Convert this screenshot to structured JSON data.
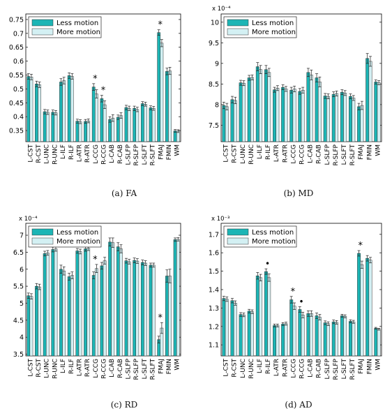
{
  "colors": {
    "less": "#1cb5b5",
    "more": "#d3f0f3",
    "edge": "#333333"
  },
  "chart_data": [
    {
      "type": "bar",
      "caption": "(a) FA",
      "exponent_label": "",
      "categories": [
        "L-CST",
        "R-CST",
        "L-UNC",
        "R-UNC",
        "L-ILF",
        "R-ILF",
        "L-ATR",
        "R-ATR",
        "L-CCG",
        "R-CCG",
        "L-CAB",
        "R-CAB",
        "L-SLFP",
        "R-SLFP",
        "L-SLFT",
        "R-SLFT",
        "FMAJ",
        "FMIN",
        "WM"
      ],
      "ylim": [
        0.31,
        0.77
      ],
      "yticks": [
        0.35,
        0.4,
        0.45,
        0.5,
        0.55,
        0.6,
        0.65,
        0.7,
        0.75
      ],
      "ytick_labels": [
        "0.35",
        "0.4",
        "0.45",
        "0.5",
        "0.55",
        "0.6",
        "0.65",
        "0.7",
        "0.75"
      ],
      "legend": [
        "Less motion",
        "More motion"
      ],
      "legend_position": "top-left",
      "markers": [
        "",
        "",
        "",
        "",
        "",
        "",
        "",
        "",
        "*",
        "*",
        "",
        "",
        "",
        "",
        "",
        "",
        "*",
        "",
        ""
      ],
      "series": [
        {
          "name": "Less motion",
          "values": [
            0.545,
            0.518,
            0.418,
            0.416,
            0.525,
            0.548,
            0.384,
            0.383,
            0.507,
            0.465,
            0.39,
            0.398,
            0.433,
            0.43,
            0.447,
            0.432,
            0.703,
            0.563,
            0.349
          ],
          "errors": [
            0.01,
            0.01,
            0.008,
            0.008,
            0.012,
            0.01,
            0.007,
            0.007,
            0.012,
            0.012,
            0.01,
            0.008,
            0.008,
            0.008,
            0.007,
            0.007,
            0.01,
            0.012,
            0.005
          ]
        },
        {
          "name": "More motion",
          "values": [
            0.543,
            0.515,
            0.416,
            0.414,
            0.53,
            0.545,
            0.382,
            0.385,
            0.482,
            0.443,
            0.395,
            0.404,
            0.43,
            0.426,
            0.445,
            0.43,
            0.665,
            0.565,
            0.348
          ],
          "errors": [
            0.01,
            0.01,
            0.008,
            0.008,
            0.012,
            0.01,
            0.007,
            0.007,
            0.015,
            0.014,
            0.012,
            0.01,
            0.008,
            0.008,
            0.007,
            0.007,
            0.013,
            0.013,
            0.005
          ]
        }
      ]
    },
    {
      "type": "bar",
      "caption": "(b) MD",
      "exponent_label": "x 10⁻⁴",
      "categories": [
        "L-CST",
        "R-CST",
        "L-UNC",
        "R-UNC",
        "L-ILF",
        "R-ILF",
        "L-ATR",
        "R-ATR",
        "L-CCG",
        "R-CCG",
        "L-CAB",
        "R-CAB",
        "L-SLFP",
        "R-SLFP",
        "L-SLFT",
        "R-SLFT",
        "FMAJ",
        "FMIN",
        "WM"
      ],
      "ylim": [
        7.1,
        10.2
      ],
      "yticks": [
        7.5,
        8,
        8.5,
        9,
        9.5,
        10
      ],
      "ytick_labels": [
        "7.5",
        "8",
        "8.5",
        "9",
        "9.5",
        "10"
      ],
      "legend": [
        "Less motion",
        "More motion"
      ],
      "legend_position": "top-left",
      "markers": [
        "",
        "",
        "",
        "",
        "",
        "",
        "",
        "",
        "",
        "",
        "",
        "",
        "",
        "",
        "",
        "",
        "",
        "",
        ""
      ],
      "series": [
        {
          "name": "Less motion",
          "values": [
            7.98,
            8.12,
            8.53,
            8.65,
            8.92,
            8.85,
            8.36,
            8.42,
            8.35,
            8.32,
            8.78,
            8.65,
            8.21,
            8.25,
            8.3,
            8.2,
            7.95,
            9.12,
            8.55
          ],
          "errors": [
            0.08,
            0.08,
            0.06,
            0.06,
            0.1,
            0.1,
            0.06,
            0.06,
            0.07,
            0.07,
            0.1,
            0.1,
            0.06,
            0.06,
            0.06,
            0.06,
            0.08,
            0.12,
            0.05
          ]
        },
        {
          "name": "More motion",
          "values": [
            7.95,
            8.1,
            8.52,
            8.66,
            8.85,
            8.78,
            8.4,
            8.38,
            8.38,
            8.35,
            8.72,
            8.55,
            8.2,
            8.27,
            8.28,
            8.16,
            7.98,
            9.05,
            8.53
          ],
          "errors": [
            0.08,
            0.08,
            0.06,
            0.06,
            0.1,
            0.1,
            0.06,
            0.06,
            0.07,
            0.07,
            0.12,
            0.12,
            0.06,
            0.06,
            0.06,
            0.06,
            0.1,
            0.12,
            0.05
          ]
        }
      ]
    },
    {
      "type": "bar",
      "caption": "(c) RD",
      "exponent_label": "x 10⁻⁴",
      "categories": [
        "L-CST",
        "R-CST",
        "L-UNC",
        "R-UNC",
        "L-ILF",
        "R-ILF",
        "L-ATR",
        "R-ATR",
        "L-CCG",
        "R-CCG",
        "L-CAB",
        "R-CAB",
        "L-SLFP",
        "R-SLFP",
        "L-SLFT",
        "R-SLFT",
        "FMAJ",
        "FMIN",
        "WM"
      ],
      "ylim": [
        3.45,
        7.35
      ],
      "yticks": [
        3.5,
        4,
        4.5,
        5,
        5.5,
        6,
        6.5,
        7
      ],
      "ytick_labels": [
        "3.5",
        "4",
        "4.5",
        "5",
        "5.5",
        "6",
        "6.5",
        "7"
      ],
      "legend": [
        "Less motion",
        "More motion"
      ],
      "legend_position": "top-left",
      "markers": [
        "",
        "",
        "",
        "",
        "",
        "",
        "",
        "",
        "*",
        "",
        "",
        "",
        "",
        "",
        "",
        "",
        "*",
        "",
        ""
      ],
      "series": [
        {
          "name": "Less motion",
          "values": [
            5.22,
            5.5,
            6.46,
            6.58,
            6.0,
            5.78,
            6.54,
            6.6,
            5.82,
            6.1,
            6.8,
            6.66,
            6.25,
            6.26,
            6.2,
            6.12,
            3.93,
            5.8,
            6.87
          ],
          "errors": [
            0.08,
            0.08,
            0.07,
            0.07,
            0.12,
            0.1,
            0.07,
            0.07,
            0.1,
            0.1,
            0.12,
            0.12,
            0.07,
            0.07,
            0.07,
            0.06,
            0.1,
            0.18,
            0.05
          ]
        },
        {
          "name": "More motion",
          "values": [
            5.2,
            5.48,
            6.48,
            6.6,
            5.95,
            5.82,
            6.52,
            6.62,
            6.02,
            6.25,
            6.78,
            6.6,
            6.22,
            6.24,
            6.18,
            6.12,
            4.27,
            5.8,
            6.88
          ],
          "errors": [
            0.08,
            0.08,
            0.07,
            0.07,
            0.12,
            0.1,
            0.07,
            0.07,
            0.12,
            0.1,
            0.14,
            0.12,
            0.07,
            0.07,
            0.07,
            0.06,
            0.16,
            0.2,
            0.05
          ]
        }
      ]
    },
    {
      "type": "bar",
      "caption": "(d) AD",
      "exponent_label": "x 10⁻³",
      "categories": [
        "L-CST",
        "R-CST",
        "L-UNC",
        "R-UNC",
        "L-ILF",
        "R-ILF",
        "L-ATR",
        "R-ATR",
        "L-CCG",
        "R-CCG",
        "L-CAB",
        "R-CAB",
        "L-SLFP",
        "R-SLFP",
        "L-SLFT",
        "R-SLFT",
        "FMAJ",
        "FMIN",
        "WM"
      ],
      "ylim": [
        1.04,
        1.76
      ],
      "yticks": [
        1.1,
        1.2,
        1.3,
        1.4,
        1.5,
        1.6,
        1.7
      ],
      "ytick_labels": [
        "1.1",
        "1.2",
        "1.3",
        "1.4",
        "1.5",
        "1.6",
        "1.7"
      ],
      "legend": [
        "Less motion",
        "More motion"
      ],
      "legend_position": "top-left",
      "markers": [
        "",
        "",
        "",
        "",
        "",
        "•",
        "",
        "",
        "*",
        "•",
        "",
        "",
        "",
        "",
        "",
        "",
        "*",
        "",
        ""
      ],
      "series": [
        {
          "name": "Less motion",
          "values": [
            1.352,
            1.34,
            1.265,
            1.283,
            1.475,
            1.498,
            1.205,
            1.213,
            1.345,
            1.292,
            1.27,
            1.258,
            1.22,
            1.225,
            1.258,
            1.228,
            1.597,
            1.57,
            1.19
          ],
          "errors": [
            0.012,
            0.012,
            0.01,
            0.01,
            0.018,
            0.015,
            0.008,
            0.008,
            0.018,
            0.015,
            0.015,
            0.015,
            0.01,
            0.01,
            0.008,
            0.008,
            0.015,
            0.015,
            0.005
          ]
        },
        {
          "name": "More motion",
          "values": [
            1.348,
            1.327,
            1.263,
            1.28,
            1.465,
            1.465,
            1.205,
            1.215,
            1.31,
            1.262,
            1.27,
            1.25,
            1.215,
            1.222,
            1.255,
            1.225,
            1.535,
            1.56,
            1.185
          ],
          "errors": [
            0.012,
            0.012,
            0.01,
            0.01,
            0.018,
            0.02,
            0.008,
            0.008,
            0.018,
            0.015,
            0.015,
            0.015,
            0.01,
            0.01,
            0.008,
            0.008,
            0.02,
            0.015,
            0.005
          ]
        }
      ]
    }
  ]
}
